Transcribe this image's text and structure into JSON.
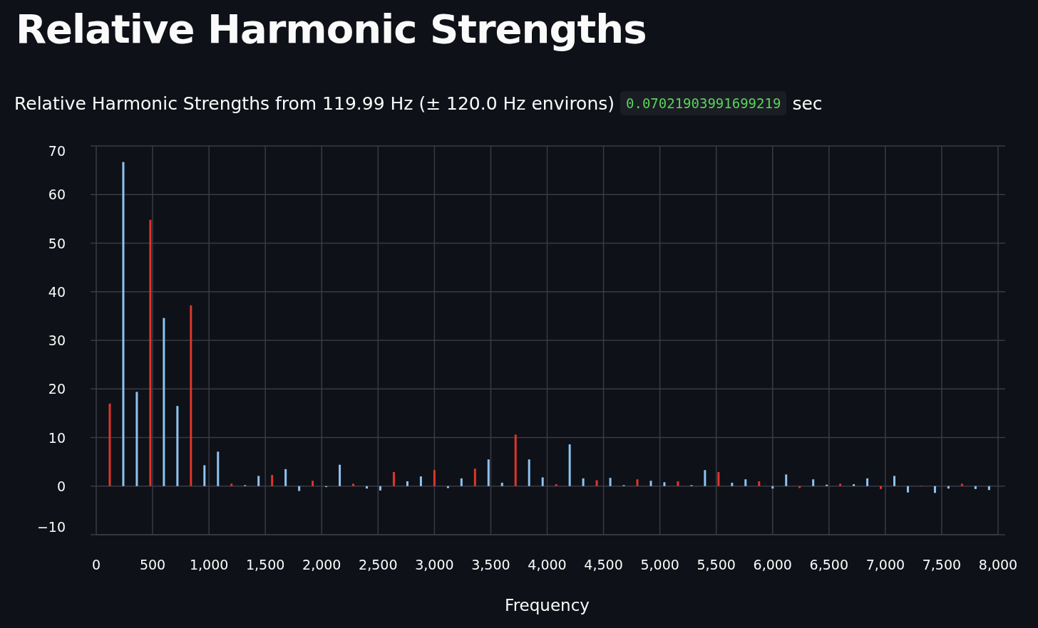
{
  "chart_data": {
    "type": "bar",
    "title": "Relative Harmonic Strengths",
    "subtitle": "Relative Harmonic Strengths from 119.99 Hz (± 120.0 Hz environs)",
    "annotations": [
      "0.07021903991699219",
      "sec"
    ],
    "xlabel": "Frequency",
    "xlim": [
      0,
      8000
    ],
    "xticks": [
      0,
      {
        "value": 500,
        "label": "500"
      },
      {
        "value": 1000,
        "label": "1,000"
      },
      {
        "value": 1500,
        "label": "1,500"
      },
      {
        "value": 2000,
        "label": "2,000"
      },
      {
        "value": 2500,
        "label": "2,500"
      },
      {
        "value": 3000,
        "label": "3,000"
      },
      {
        "value": 3500,
        "label": "3,500"
      },
      {
        "value": 4000,
        "label": "4,000"
      },
      {
        "value": 4500,
        "label": "4,500"
      },
      {
        "value": 5000,
        "label": "5,000"
      },
      {
        "value": 5500,
        "label": "5,500"
      },
      {
        "value": 6000,
        "label": "6,000"
      },
      {
        "value": 6500,
        "label": "6,500"
      },
      {
        "value": 7000,
        "label": "7,000"
      },
      {
        "value": 7500,
        "label": "7,500"
      },
      {
        "value": 8000,
        "label": "8,000"
      }
    ],
    "ylim": [
      -10,
      70
    ],
    "yticks": [
      {
        "value": -10,
        "label": "−10"
      },
      0,
      10,
      20,
      30,
      40,
      50,
      60,
      70
    ],
    "grid": true,
    "series": [
      {
        "color": "#e0352b",
        "x": [
          120,
          480,
          840,
          1200,
          1560,
          1920,
          2280,
          2640,
          3000,
          3360,
          3720,
          4080,
          4440,
          4800,
          5160,
          5520,
          5880,
          6240,
          6600,
          6960,
          7320,
          7680
        ],
        "values": [
          17.0,
          54.8,
          37.2,
          0.5,
          2.3,
          1.1,
          0.5,
          2.9,
          3.3,
          3.6,
          10.6,
          0.4,
          1.2,
          1.4,
          1.0,
          2.9,
          1.0,
          -0.4,
          0.5,
          -0.6,
          0.1,
          0.5
        ]
      },
      {
        "color": "#8ec3f2",
        "x": [
          240,
          360,
          600,
          720,
          960,
          1080,
          1320,
          1440,
          1680,
          1800,
          2040,
          2160,
          2400,
          2520,
          2760,
          2880,
          3120,
          3240,
          3480,
          3600,
          3840,
          3960,
          4200,
          4320,
          4560,
          4680,
          4920,
          5040,
          5280,
          5400,
          5640,
          5760,
          6000,
          6120,
          6360,
          6480,
          6720,
          6840,
          7080,
          7200,
          7440,
          7560,
          7800,
          7920
        ],
        "values": [
          66.7,
          19.4,
          34.6,
          16.5,
          4.3,
          7.1,
          0.2,
          2.1,
          3.5,
          -1.0,
          -0.2,
          4.4,
          -0.5,
          -0.9,
          1.0,
          2.0,
          -0.4,
          1.6,
          5.5,
          0.7,
          5.5,
          1.8,
          8.6,
          1.6,
          1.7,
          0.2,
          1.1,
          0.8,
          0.2,
          3.3,
          0.7,
          1.4,
          -0.5,
          2.4,
          1.4,
          0.3,
          0.4,
          1.6,
          2.1,
          -1.3,
          -1.4,
          -0.5,
          -0.6,
          -0.8
        ]
      }
    ]
  }
}
